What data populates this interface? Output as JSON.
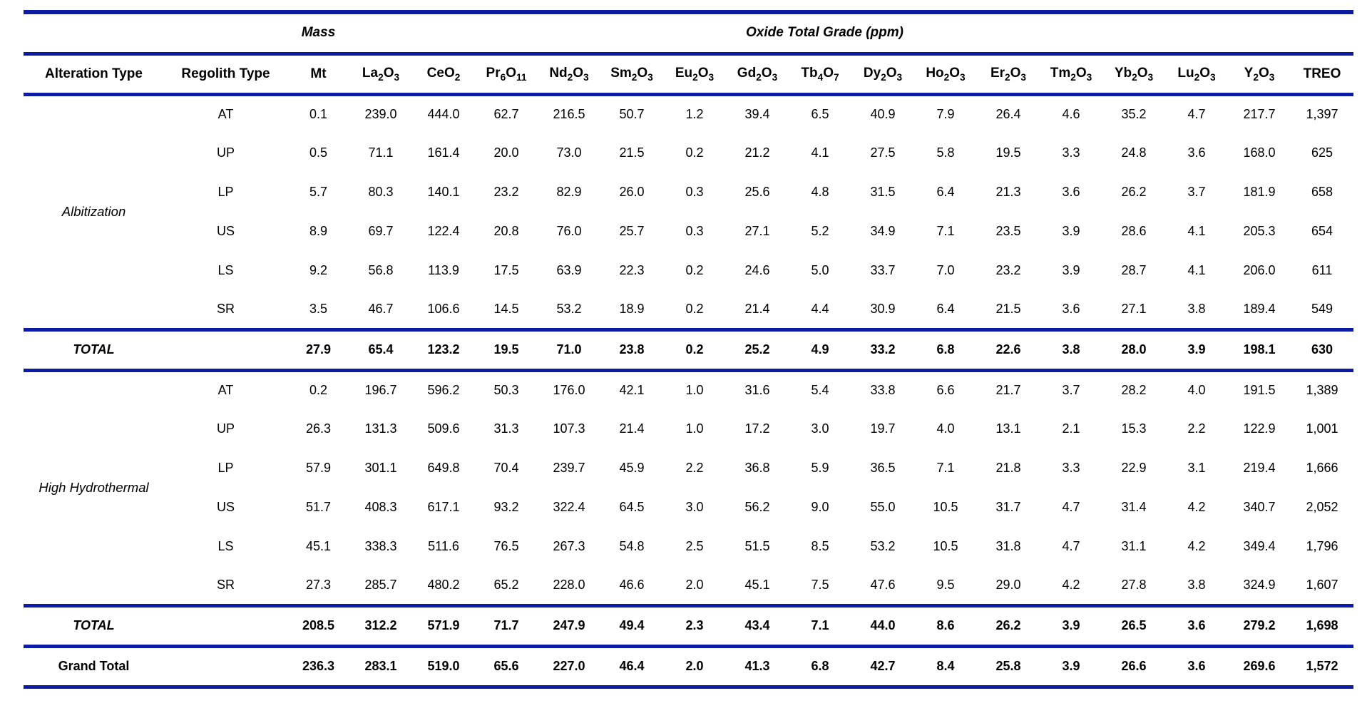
{
  "title_row": {
    "mass_label": "Mass",
    "oxide_label": "Oxide Total Grade (ppm)"
  },
  "columns": {
    "alteration": "Alteration Type",
    "regolith": "Regolith Type",
    "mass_unit": "Mt",
    "oxides": [
      "La_2O_3",
      "CeO_2",
      "Pr_6O_11",
      "Nd_2O_3",
      "Sm_2O_3",
      "Eu_2O_3",
      "Gd_2O_3",
      "Tb_4O_7",
      "Dy_2O_3",
      "Ho_2O_3",
      "Er_2O_3",
      "Tm_2O_3",
      "Yb_2O_3",
      "Lu_2O_3",
      "Y_2O_3",
      "TREO"
    ]
  },
  "sections": [
    {
      "alteration": "Albitization",
      "rows": [
        {
          "regolith": "AT",
          "values": [
            "0.1",
            "239.0",
            "444.0",
            "62.7",
            "216.5",
            "50.7",
            "1.2",
            "39.4",
            "6.5",
            "40.9",
            "7.9",
            "26.4",
            "4.6",
            "35.2",
            "4.7",
            "217.7",
            "1,397"
          ]
        },
        {
          "regolith": "UP",
          "values": [
            "0.5",
            "71.1",
            "161.4",
            "20.0",
            "73.0",
            "21.5",
            "0.2",
            "21.2",
            "4.1",
            "27.5",
            "5.8",
            "19.5",
            "3.3",
            "24.8",
            "3.6",
            "168.0",
            "625"
          ]
        },
        {
          "regolith": "LP",
          "values": [
            "5.7",
            "80.3",
            "140.1",
            "23.2",
            "82.9",
            "26.0",
            "0.3",
            "25.6",
            "4.8",
            "31.5",
            "6.4",
            "21.3",
            "3.6",
            "26.2",
            "3.7",
            "181.9",
            "658"
          ]
        },
        {
          "regolith": "US",
          "values": [
            "8.9",
            "69.7",
            "122.4",
            "20.8",
            "76.0",
            "25.7",
            "0.3",
            "27.1",
            "5.2",
            "34.9",
            "7.1",
            "23.5",
            "3.9",
            "28.6",
            "4.1",
            "205.3",
            "654"
          ]
        },
        {
          "regolith": "LS",
          "values": [
            "9.2",
            "56.8",
            "113.9",
            "17.5",
            "63.9",
            "22.3",
            "0.2",
            "24.6",
            "5.0",
            "33.7",
            "7.0",
            "23.2",
            "3.9",
            "28.7",
            "4.1",
            "206.0",
            "611"
          ]
        },
        {
          "regolith": "SR",
          "values": [
            "3.5",
            "46.7",
            "106.6",
            "14.5",
            "53.2",
            "18.9",
            "0.2",
            "21.4",
            "4.4",
            "30.9",
            "6.4",
            "21.5",
            "3.6",
            "27.1",
            "3.8",
            "189.4",
            "549"
          ]
        }
      ],
      "total_label": "TOTAL",
      "total_values": [
        "27.9",
        "65.4",
        "123.2",
        "19.5",
        "71.0",
        "23.8",
        "0.2",
        "25.2",
        "4.9",
        "33.2",
        "6.8",
        "22.6",
        "3.8",
        "28.0",
        "3.9",
        "198.1",
        "630"
      ]
    },
    {
      "alteration": "High Hydrothermal",
      "rows": [
        {
          "regolith": "AT",
          "values": [
            "0.2",
            "196.7",
            "596.2",
            "50.3",
            "176.0",
            "42.1",
            "1.0",
            "31.6",
            "5.4",
            "33.8",
            "6.6",
            "21.7",
            "3.7",
            "28.2",
            "4.0",
            "191.5",
            "1,389"
          ]
        },
        {
          "regolith": "UP",
          "values": [
            "26.3",
            "131.3",
            "509.6",
            "31.3",
            "107.3",
            "21.4",
            "1.0",
            "17.2",
            "3.0",
            "19.7",
            "4.0",
            "13.1",
            "2.1",
            "15.3",
            "2.2",
            "122.9",
            "1,001"
          ]
        },
        {
          "regolith": "LP",
          "values": [
            "57.9",
            "301.1",
            "649.8",
            "70.4",
            "239.7",
            "45.9",
            "2.2",
            "36.8",
            "5.9",
            "36.5",
            "7.1",
            "21.8",
            "3.3",
            "22.9",
            "3.1",
            "219.4",
            "1,666"
          ]
        },
        {
          "regolith": "US",
          "values": [
            "51.7",
            "408.3",
            "617.1",
            "93.2",
            "322.4",
            "64.5",
            "3.0",
            "56.2",
            "9.0",
            "55.0",
            "10.5",
            "31.7",
            "4.7",
            "31.4",
            "4.2",
            "340.7",
            "2,052"
          ]
        },
        {
          "regolith": "LS",
          "values": [
            "45.1",
            "338.3",
            "511.6",
            "76.5",
            "267.3",
            "54.8",
            "2.5",
            "51.5",
            "8.5",
            "53.2",
            "10.5",
            "31.8",
            "4.7",
            "31.1",
            "4.2",
            "349.4",
            "1,796"
          ]
        },
        {
          "regolith": "SR",
          "values": [
            "27.3",
            "285.7",
            "480.2",
            "65.2",
            "228.0",
            "46.6",
            "2.0",
            "45.1",
            "7.5",
            "47.6",
            "9.5",
            "29.0",
            "4.2",
            "27.8",
            "3.8",
            "324.9",
            "1,607"
          ]
        }
      ],
      "total_label": "TOTAL",
      "total_values": [
        "208.5",
        "312.2",
        "571.9",
        "71.7",
        "247.9",
        "49.4",
        "2.3",
        "43.4",
        "7.1",
        "44.0",
        "8.6",
        "26.2",
        "3.9",
        "26.5",
        "3.6",
        "279.2",
        "1,698"
      ]
    }
  ],
  "grand_total": {
    "label": "Grand Total",
    "values": [
      "236.3",
      "283.1",
      "519.0",
      "65.6",
      "227.0",
      "46.4",
      "2.0",
      "41.3",
      "6.8",
      "42.7",
      "8.4",
      "25.8",
      "3.9",
      "26.6",
      "3.6",
      "269.6",
      "1,572"
    ]
  },
  "colors": {
    "rule": "#0c1ba3",
    "text": "#000000",
    "background": "#ffffff"
  }
}
